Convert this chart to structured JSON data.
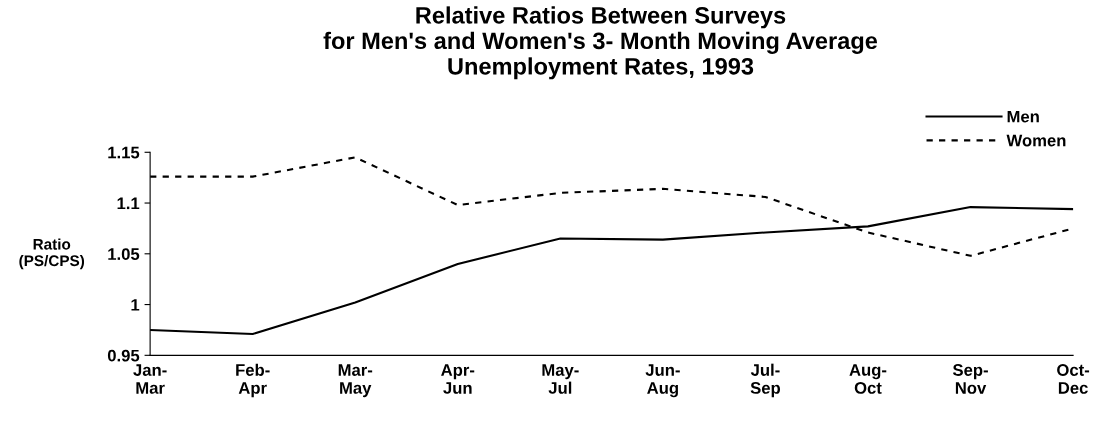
{
  "chart_data": {
    "type": "line",
    "title": "Relative Ratios Between Surveys\nfor Men's and Women's 3- Month Moving Average\nUnemployment Rates, 1993",
    "ylabel": "Ratio\n(PS/CPS)",
    "categories": [
      "Jan-\nMar",
      "Feb-\nApr",
      "Mar-\nMay",
      "Apr-\nJun",
      "May-\nJul",
      "Jun-\nAug",
      "Jul-\nSep",
      "Aug-\nOct",
      "Sep-\nNov",
      "Oct-\nDec"
    ],
    "series": [
      {
        "name": "Men",
        "color": "#000000",
        "line_style": "solid",
        "values": [
          0.975,
          0.971,
          1.002,
          1.04,
          1.065,
          1.064,
          1.071,
          1.077,
          1.096,
          1.094
        ]
      },
      {
        "name": "Women",
        "color": "#000000",
        "line_style": "dashed",
        "values": [
          1.126,
          1.126,
          1.145,
          1.098,
          1.11,
          1.114,
          1.106,
          1.071,
          1.048,
          1.075
        ]
      }
    ],
    "ylim": [
      0.95,
      1.15
    ],
    "yticks": [
      {
        "value": 0.95,
        "label": "0.95"
      },
      {
        "value": 1.0,
        "label": "1"
      },
      {
        "value": 1.05,
        "label": "1.05"
      },
      {
        "value": 1.1,
        "label": "1.1"
      },
      {
        "value": 1.15,
        "label": "1.15"
      }
    ],
    "grid": false,
    "legend": "top right",
    "marker": "none"
  }
}
